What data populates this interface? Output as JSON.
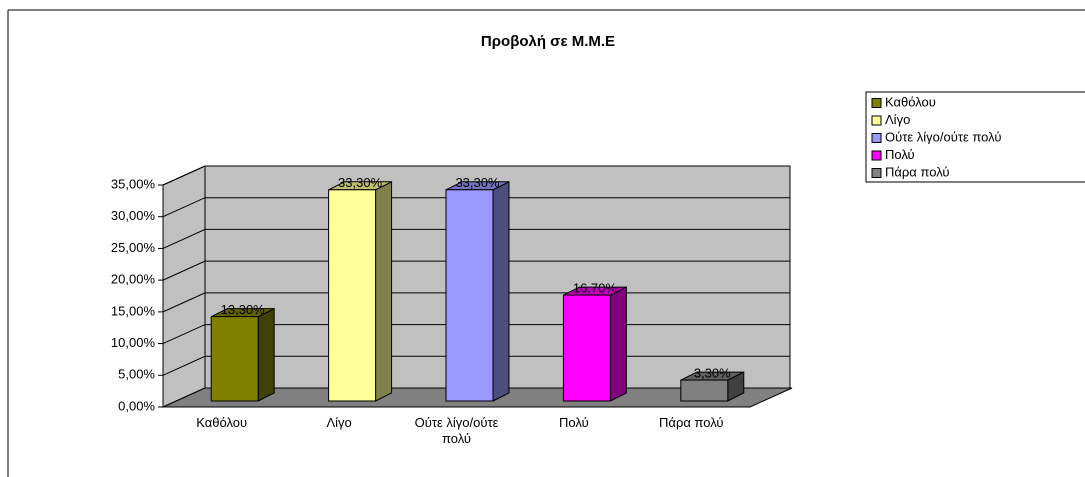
{
  "chart_data": {
    "type": "bar3d",
    "title": "Προβολή σε Μ.Μ.Ε",
    "categories": [
      "Καθόλου",
      "Λίγο",
      "Ούτε λίγο/ούτε πολύ",
      "Πολύ",
      "Πάρα πολύ"
    ],
    "values": [
      13.3,
      33.3,
      33.3,
      16.7,
      3.3
    ],
    "value_labels": [
      "13,30%",
      "33,30%",
      "33,30%",
      "16,70%",
      "3,30%"
    ],
    "colors": [
      "#808000",
      "#ffff99",
      "#9999ff",
      "#ff00ff",
      "#808080"
    ],
    "ylim": [
      0,
      35
    ],
    "yticks": [
      {
        "value": 0,
        "label": "0,00%"
      },
      {
        "value": 5,
        "label": "5,00%"
      },
      {
        "value": 10,
        "label": "10,00%"
      },
      {
        "value": 15,
        "label": "15,00%"
      },
      {
        "value": 20,
        "label": "20,00%"
      },
      {
        "value": 25,
        "label": "25,00%"
      },
      {
        "value": 30,
        "label": "30,00%"
      },
      {
        "value": 35,
        "label": "35,00%"
      }
    ],
    "grid": true,
    "legend": "right"
  }
}
